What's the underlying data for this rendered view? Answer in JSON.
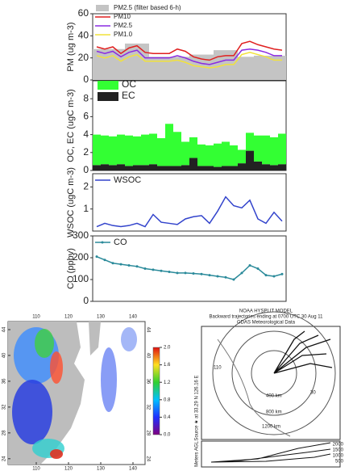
{
  "chart_data": [
    {
      "type": "line",
      "ylabel": "PM (ug m-3)",
      "ylim": [
        0,
        60
      ],
      "yticks": [
        0,
        20,
        40,
        60
      ],
      "series": [
        {
          "name": "PM2.5 (filter based 6-h)",
          "color": "#c4c4c4",
          "mark": "bar",
          "values": [
            28,
            28,
            28,
            28,
            33,
            33,
            33,
            21,
            21,
            21,
            21,
            21,
            23,
            23,
            23,
            27,
            27,
            27,
            21,
            21,
            22,
            22,
            22,
            22
          ]
        },
        {
          "name": "PM10",
          "color": "#e02020",
          "values": [
            30,
            28,
            30,
            24,
            29,
            31,
            25,
            24,
            24,
            24,
            28,
            26,
            21,
            19,
            18,
            21,
            22,
            22,
            33,
            35,
            32,
            30,
            28,
            27
          ]
        },
        {
          "name": "PM2.5",
          "color": "#8a2be2",
          "values": [
            26,
            24,
            26,
            21,
            25,
            27,
            20,
            20,
            20,
            20,
            22,
            20,
            17,
            15,
            14,
            16,
            18,
            18,
            27,
            28,
            27,
            25,
            22,
            22
          ]
        },
        {
          "name": "PM1.0",
          "color": "#f2e23a",
          "values": [
            22,
            20,
            22,
            17,
            21,
            23,
            17,
            17,
            17,
            17,
            18,
            16,
            13,
            12,
            11,
            12,
            14,
            14,
            23,
            25,
            23,
            21,
            18,
            18
          ]
        }
      ]
    },
    {
      "type": "stacked_bar",
      "ylabel": "OC, EC (ugC m-3)",
      "ylim": [
        0,
        10
      ],
      "yticks": [
        0,
        2,
        4,
        6,
        8
      ],
      "series": [
        {
          "name": "EC",
          "color": "#222222",
          "values": [
            0.6,
            0.7,
            0.6,
            0.7,
            0.5,
            0.6,
            0.6,
            0.7,
            0.5,
            0.5,
            0.5,
            0.6,
            1.4,
            0.5,
            0.5,
            0.4,
            0.5,
            0.5,
            0.8,
            2.2,
            1.0,
            0.7,
            0.6,
            0.7
          ]
        },
        {
          "name": "OC",
          "color": "#33ff33",
          "values": [
            3.4,
            3.2,
            3.2,
            3.3,
            3.4,
            3.2,
            3.4,
            3.4,
            3.1,
            4.7,
            3.8,
            2.6,
            2.3,
            2.4,
            2.3,
            2.6,
            2.7,
            2.3,
            1.5,
            2.0,
            2.9,
            3.2,
            3.1,
            3.4
          ]
        }
      ]
    },
    {
      "type": "line",
      "ylabel": "WSOC (ugC m-3)",
      "ylim": [
        0,
        2.6
      ],
      "yticks": [
        1,
        2
      ],
      "series": [
        {
          "name": "WSOC",
          "color": "#3344cc",
          "values": [
            0.2,
            0.35,
            0.25,
            0.2,
            0.25,
            0.35,
            0.2,
            0.75,
            0.4,
            0.35,
            0.3,
            0.55,
            0.65,
            0.7,
            0.35,
            0.9,
            1.55,
            1.15,
            1.05,
            1.4,
            0.55,
            0.35,
            0.85,
            0.45
          ]
        }
      ]
    },
    {
      "type": "line",
      "ylabel": "CO (ppbv)",
      "ylim": [
        0,
        300
      ],
      "yticks": [
        0,
        100,
        200,
        300
      ],
      "markers": true,
      "series": [
        {
          "name": "CO",
          "color": "#2a8a9a",
          "values": [
            205,
            190,
            175,
            170,
            165,
            160,
            150,
            145,
            140,
            135,
            130,
            130,
            128,
            125,
            120,
            115,
            110,
            100,
            130,
            165,
            150,
            120,
            115,
            125
          ]
        }
      ]
    },
    {
      "type": "map",
      "xlim": [
        101.25,
        143.75
      ],
      "xticks": [
        110,
        120,
        130,
        140
      ],
      "ylim": [
        23.1,
        45.25
      ],
      "yticks": [
        24,
        28,
        32,
        36,
        40,
        44
      ],
      "colorbar_lim": [
        0,
        2
      ],
      "colorbar_ticks": [
        {
          "value": 0,
          "label": "0.0"
        },
        {
          "value": 0.4,
          "label": "0.4"
        },
        {
          "value": 0.8,
          "label": "0.8"
        },
        {
          "value": 1.2,
          "label": "1.2"
        },
        {
          "value": 1.6,
          "label": "1.6"
        },
        {
          "value": 2,
          "label": "2.0"
        }
      ]
    }
  ],
  "trajectory": {
    "title": "NOAA HYSPLIT MODEL",
    "subtitle": "Backward trajectories ending at 0700 UTC 30 Aug 11",
    "data_source": "GDAS Meteorological Data",
    "source": "Source ★ at 33.29 N 126.16 E",
    "rings": [
      "400 km",
      "800 km",
      "1200 km"
    ],
    "lon_label": "110",
    "lat_label": "30",
    "height_axis": "Meters AGL",
    "heights": [
      "2000",
      "1500",
      "1000",
      "500"
    ]
  }
}
